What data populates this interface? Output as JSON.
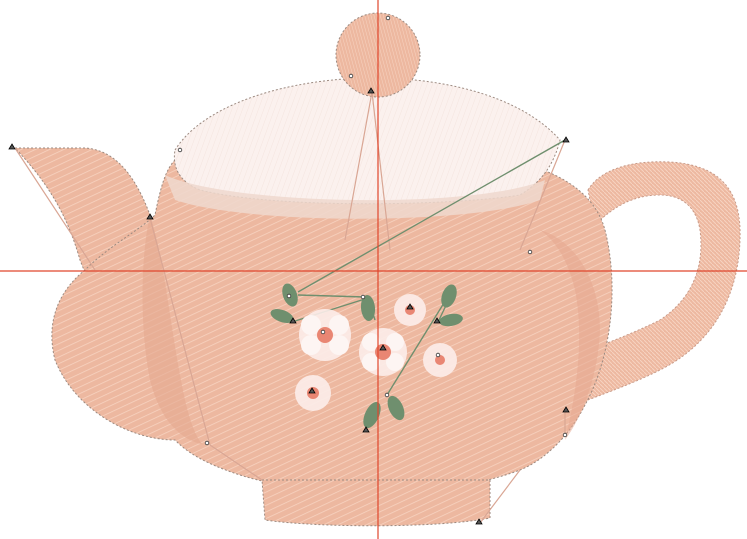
{
  "canvas": {
    "background": "#ffffff"
  },
  "design": {
    "subject": "teapot",
    "colors": {
      "body": "#EDB8A0",
      "body_stitch": "#F7D3C1",
      "outline": "#9C8A80",
      "lid": "#FBF1EE",
      "lid_fringe": "#EFD8CE",
      "leaf": "#6F8F6E",
      "flower_petal": "#FCEDEA",
      "flower_center": "#E98673",
      "crosshair": "#E0462C",
      "travel_line": "#D9A694",
      "marker": "#000000"
    }
  },
  "guides": {
    "crosshair_color": "#E0462C"
  }
}
